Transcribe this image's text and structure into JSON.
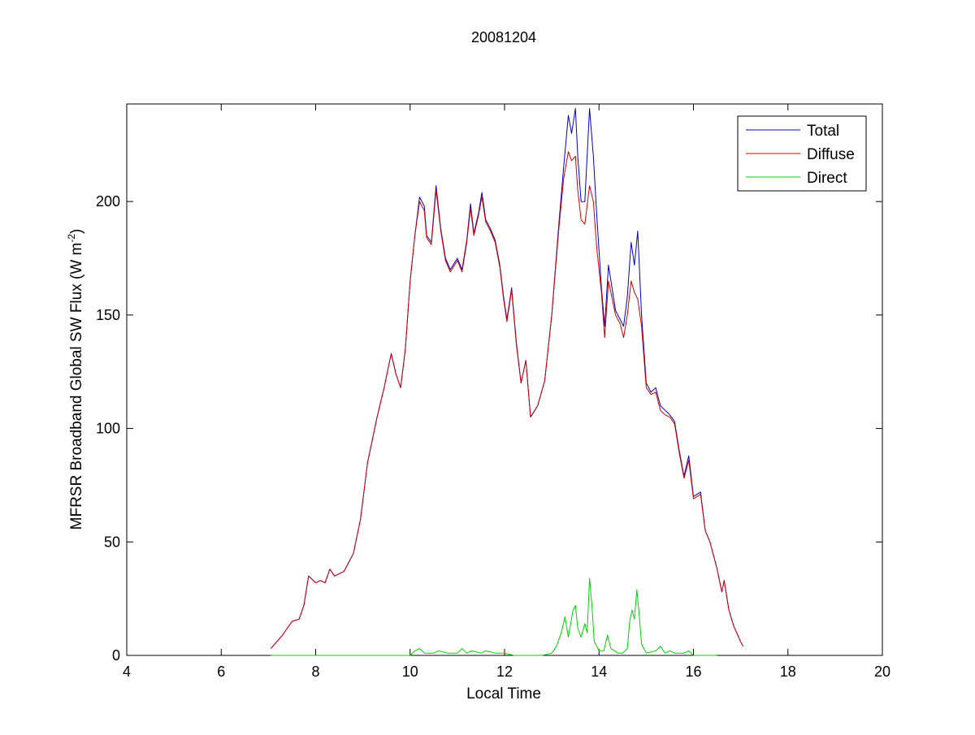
{
  "chart_data": {
    "type": "line",
    "title": "20081204",
    "xlabel": "Local Time",
    "ylabel": "MFRSR Broadband Global SW Flux (W m",
    "ylabel_sup": "-2",
    "ylabel_close": ")",
    "xlim": [
      4,
      20
    ],
    "ylim": [
      0,
      243
    ],
    "xticks": [
      4,
      6,
      8,
      10,
      12,
      14,
      16,
      18,
      20
    ],
    "yticks": [
      0,
      50,
      100,
      150,
      200
    ],
    "grid": false,
    "legend_position": "top-right",
    "series": [
      {
        "name": "Total",
        "color": "#0000c8",
        "points": [
          [
            7.05,
            3
          ],
          [
            7.3,
            9
          ],
          [
            7.5,
            15
          ],
          [
            7.65,
            16
          ],
          [
            7.75,
            22
          ],
          [
            7.85,
            35
          ],
          [
            8.0,
            32
          ],
          [
            8.1,
            33
          ],
          [
            8.2,
            32
          ],
          [
            8.3,
            38
          ],
          [
            8.4,
            35
          ],
          [
            8.6,
            37
          ],
          [
            8.8,
            45
          ],
          [
            8.95,
            60
          ],
          [
            9.1,
            85
          ],
          [
            9.3,
            105
          ],
          [
            9.45,
            118
          ],
          [
            9.6,
            133
          ],
          [
            9.7,
            124
          ],
          [
            9.8,
            118
          ],
          [
            9.9,
            135
          ],
          [
            10.0,
            165
          ],
          [
            10.1,
            185
          ],
          [
            10.2,
            202
          ],
          [
            10.3,
            198
          ],
          [
            10.35,
            185
          ],
          [
            10.45,
            182
          ],
          [
            10.55,
            207
          ],
          [
            10.65,
            188
          ],
          [
            10.75,
            175
          ],
          [
            10.85,
            170
          ],
          [
            11.0,
            175
          ],
          [
            11.1,
            170
          ],
          [
            11.2,
            183
          ],
          [
            11.28,
            199
          ],
          [
            11.35,
            186
          ],
          [
            11.45,
            195
          ],
          [
            11.52,
            204
          ],
          [
            11.6,
            192
          ],
          [
            11.7,
            188
          ],
          [
            11.8,
            183
          ],
          [
            11.9,
            172
          ],
          [
            11.98,
            158
          ],
          [
            12.05,
            148
          ],
          [
            12.15,
            162
          ],
          [
            12.25,
            138
          ],
          [
            12.35,
            120
          ],
          [
            12.45,
            130
          ],
          [
            12.55,
            105
          ],
          [
            12.7,
            110
          ],
          [
            12.85,
            121
          ],
          [
            13.0,
            150
          ],
          [
            13.15,
            190
          ],
          [
            13.25,
            215
          ],
          [
            13.35,
            238
          ],
          [
            13.42,
            230
          ],
          [
            13.5,
            241
          ],
          [
            13.55,
            220
          ],
          [
            13.62,
            200
          ],
          [
            13.7,
            200
          ],
          [
            13.8,
            241
          ],
          [
            13.88,
            220
          ],
          [
            13.95,
            195
          ],
          [
            14.05,
            162
          ],
          [
            14.12,
            145
          ],
          [
            14.2,
            172
          ],
          [
            14.35,
            152
          ],
          [
            14.45,
            148
          ],
          [
            14.52,
            145
          ],
          [
            14.6,
            158
          ],
          [
            14.68,
            182
          ],
          [
            14.75,
            172
          ],
          [
            14.82,
            187
          ],
          [
            14.9,
            150
          ],
          [
            15.0,
            120
          ],
          [
            15.1,
            116
          ],
          [
            15.2,
            118
          ],
          [
            15.3,
            110
          ],
          [
            15.4,
            108
          ],
          [
            15.5,
            106
          ],
          [
            15.6,
            103
          ],
          [
            15.7,
            90
          ],
          [
            15.8,
            79
          ],
          [
            15.9,
            88
          ],
          [
            16.0,
            70
          ],
          [
            16.15,
            72
          ],
          [
            16.25,
            55
          ],
          [
            16.35,
            50
          ],
          [
            16.5,
            38
          ],
          [
            16.6,
            28
          ],
          [
            16.65,
            33
          ],
          [
            16.75,
            20
          ],
          [
            16.85,
            13
          ],
          [
            17.0,
            6
          ],
          [
            17.05,
            4
          ]
        ]
      },
      {
        "name": "Diffuse",
        "color": "#d20000",
        "points": [
          [
            7.05,
            3
          ],
          [
            7.3,
            9
          ],
          [
            7.5,
            15
          ],
          [
            7.65,
            16
          ],
          [
            7.75,
            22
          ],
          [
            7.85,
            35
          ],
          [
            8.0,
            32
          ],
          [
            8.1,
            33
          ],
          [
            8.2,
            32
          ],
          [
            8.3,
            38
          ],
          [
            8.4,
            35
          ],
          [
            8.6,
            37
          ],
          [
            8.8,
            45
          ],
          [
            8.95,
            60
          ],
          [
            9.1,
            85
          ],
          [
            9.3,
            105
          ],
          [
            9.45,
            118
          ],
          [
            9.6,
            133
          ],
          [
            9.7,
            124
          ],
          [
            9.8,
            118
          ],
          [
            9.9,
            135
          ],
          [
            10.0,
            165
          ],
          [
            10.1,
            185
          ],
          [
            10.2,
            200
          ],
          [
            10.3,
            196
          ],
          [
            10.35,
            184
          ],
          [
            10.45,
            181
          ],
          [
            10.55,
            205
          ],
          [
            10.65,
            187
          ],
          [
            10.75,
            174
          ],
          [
            10.85,
            169
          ],
          [
            11.0,
            174
          ],
          [
            11.1,
            169
          ],
          [
            11.2,
            182
          ],
          [
            11.28,
            197
          ],
          [
            11.35,
            185
          ],
          [
            11.45,
            194
          ],
          [
            11.52,
            202
          ],
          [
            11.6,
            191
          ],
          [
            11.7,
            187
          ],
          [
            11.8,
            182
          ],
          [
            11.9,
            171
          ],
          [
            11.98,
            157
          ],
          [
            12.05,
            147
          ],
          [
            12.15,
            161
          ],
          [
            12.25,
            137
          ],
          [
            12.35,
            120
          ],
          [
            12.45,
            130
          ],
          [
            12.55,
            105
          ],
          [
            12.7,
            110
          ],
          [
            12.85,
            121
          ],
          [
            13.0,
            150
          ],
          [
            13.15,
            188
          ],
          [
            13.25,
            210
          ],
          [
            13.35,
            222
          ],
          [
            13.42,
            218
          ],
          [
            13.5,
            220
          ],
          [
            13.55,
            205
          ],
          [
            13.62,
            192
          ],
          [
            13.7,
            190
          ],
          [
            13.8,
            207
          ],
          [
            13.88,
            200
          ],
          [
            13.95,
            180
          ],
          [
            14.05,
            160
          ],
          [
            14.12,
            140
          ],
          [
            14.2,
            165
          ],
          [
            14.35,
            150
          ],
          [
            14.45,
            146
          ],
          [
            14.52,
            140
          ],
          [
            14.6,
            150
          ],
          [
            14.68,
            165
          ],
          [
            14.75,
            160
          ],
          [
            14.82,
            157
          ],
          [
            14.9,
            145
          ],
          [
            15.0,
            118
          ],
          [
            15.1,
            115
          ],
          [
            15.2,
            116
          ],
          [
            15.3,
            108
          ],
          [
            15.4,
            106
          ],
          [
            15.5,
            105
          ],
          [
            15.6,
            102
          ],
          [
            15.7,
            89
          ],
          [
            15.8,
            78
          ],
          [
            15.9,
            86
          ],
          [
            16.0,
            69
          ],
          [
            16.15,
            71
          ],
          [
            16.25,
            55
          ],
          [
            16.35,
            50
          ],
          [
            16.5,
            38
          ],
          [
            16.6,
            28
          ],
          [
            16.65,
            33
          ],
          [
            16.75,
            20
          ],
          [
            16.85,
            13
          ],
          [
            17.0,
            6
          ],
          [
            17.05,
            4
          ]
        ]
      },
      {
        "name": "Direct",
        "color": "#00d200",
        "points": [
          [
            7.05,
            0
          ],
          [
            10.0,
            0
          ],
          [
            10.1,
            2
          ],
          [
            10.2,
            3
          ],
          [
            10.3,
            1
          ],
          [
            10.5,
            1
          ],
          [
            10.6,
            2
          ],
          [
            10.8,
            1
          ],
          [
            11.0,
            1
          ],
          [
            11.1,
            3
          ],
          [
            11.2,
            1
          ],
          [
            11.3,
            2
          ],
          [
            11.5,
            1
          ],
          [
            11.6,
            2
          ],
          [
            11.8,
            1
          ],
          [
            12.0,
            1
          ],
          [
            12.2,
            0
          ],
          [
            12.8,
            0
          ],
          [
            13.0,
            1
          ],
          [
            13.1,
            4
          ],
          [
            13.2,
            10
          ],
          [
            13.28,
            17
          ],
          [
            13.35,
            8
          ],
          [
            13.45,
            20
          ],
          [
            13.5,
            22
          ],
          [
            13.55,
            12
          ],
          [
            13.62,
            8
          ],
          [
            13.7,
            14
          ],
          [
            13.75,
            10
          ],
          [
            13.8,
            34
          ],
          [
            13.85,
            22
          ],
          [
            13.9,
            6
          ],
          [
            14.0,
            2
          ],
          [
            14.1,
            2
          ],
          [
            14.18,
            9
          ],
          [
            14.25,
            3
          ],
          [
            14.4,
            1
          ],
          [
            14.5,
            1
          ],
          [
            14.6,
            3
          ],
          [
            14.65,
            15
          ],
          [
            14.7,
            20
          ],
          [
            14.75,
            16
          ],
          [
            14.8,
            29
          ],
          [
            14.85,
            18
          ],
          [
            14.9,
            5
          ],
          [
            15.0,
            1
          ],
          [
            15.2,
            2
          ],
          [
            15.3,
            4
          ],
          [
            15.4,
            1
          ],
          [
            15.5,
            2
          ],
          [
            15.6,
            1
          ],
          [
            15.8,
            1
          ],
          [
            15.9,
            2
          ],
          [
            16.0,
            0
          ],
          [
            16.5,
            0
          ]
        ]
      }
    ]
  }
}
